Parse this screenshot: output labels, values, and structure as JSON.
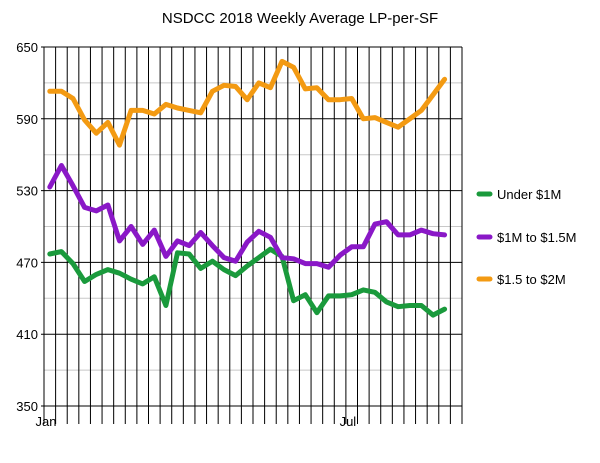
{
  "chart_data": {
    "type": "line",
    "title": "NSDCC 2018 Weekly Average LP-per-SF",
    "xlabel": "",
    "ylabel": "",
    "x_tick_labels": [
      "Jan",
      "Jul"
    ],
    "x_tick_label_positions": [
      0,
      26
    ],
    "week_count": 36,
    "ylim": [
      350,
      650
    ],
    "y_ticks": [
      350,
      410,
      470,
      530,
      590,
      650
    ],
    "y_minor_gridlines": true,
    "x_vertical_gridlines": true,
    "legend_position": "right",
    "series": [
      {
        "name": "Under $1M",
        "color": "#1a9a3c",
        "values": [
          477,
          479,
          469,
          454,
          460,
          464,
          461,
          456,
          452,
          458,
          434,
          478,
          477,
          465,
          471,
          464,
          459,
          467,
          474,
          481,
          475,
          438,
          443,
          428,
          442,
          442,
          443,
          447,
          445,
          437,
          433,
          434,
          434,
          426,
          431
        ]
      },
      {
        "name": "$1M to $1.5M",
        "color": "#8a18c7",
        "values": [
          533,
          551,
          534,
          516,
          513,
          518,
          488,
          500,
          485,
          497,
          475,
          488,
          484,
          495,
          484,
          474,
          471,
          487,
          496,
          491,
          474,
          473,
          469,
          469,
          466,
          476,
          483,
          483,
          502,
          504,
          493,
          493,
          497,
          494,
          493
        ]
      },
      {
        "name": "$1.5 to $2M",
        "color": "#f39a12",
        "values": [
          613,
          613,
          607,
          589,
          578,
          587,
          568,
          597,
          597,
          594,
          602,
          599,
          597,
          595,
          613,
          618,
          617,
          606,
          620,
          616,
          638,
          633,
          615,
          616,
          606,
          606,
          607,
          590,
          591,
          587,
          583,
          590,
          597,
          610,
          623
        ]
      }
    ]
  }
}
